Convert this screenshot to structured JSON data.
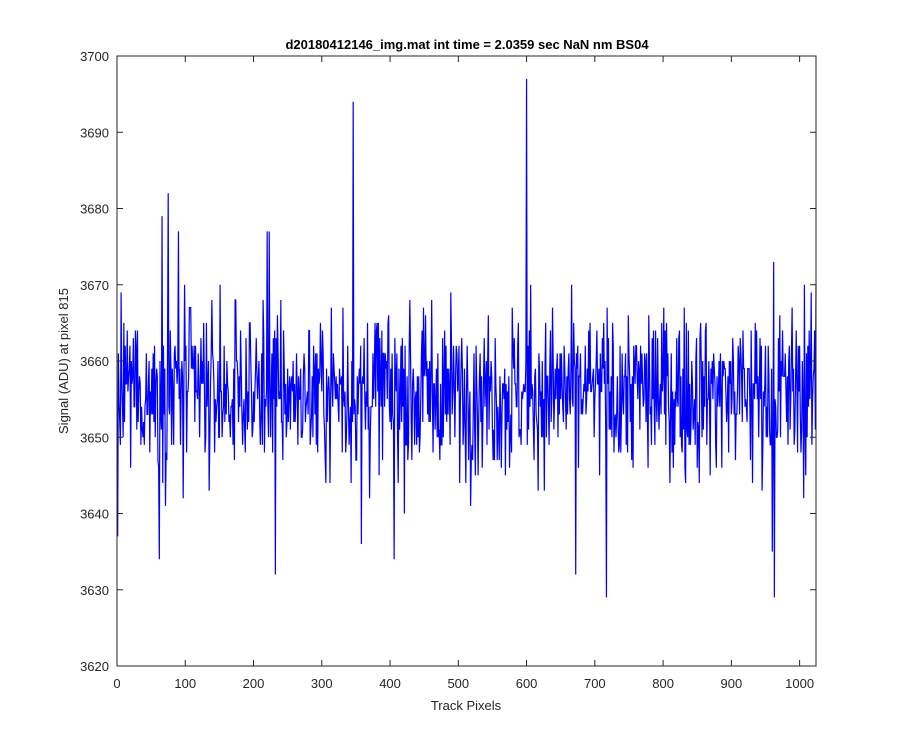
{
  "chart_data": {
    "type": "line",
    "title": "d20180412146_img.mat int time = 2.0359 sec  NaN nm BS04",
    "xlabel": "Track Pixels",
    "ylabel": "Signal (ADU) at pixel 815",
    "xlim": [
      0,
      1024
    ],
    "ylim": [
      3620,
      3700
    ],
    "xticks": [
      0,
      100,
      200,
      300,
      400,
      500,
      600,
      700,
      800,
      900,
      1000
    ],
    "yticks": [
      3620,
      3630,
      3640,
      3650,
      3660,
      3670,
      3680,
      3690,
      3700
    ],
    "grid": false,
    "legend": "none",
    "series": [
      {
        "color": "#0000ff",
        "n_points": 1024,
        "x_start": 1,
        "x_end": 1024,
        "baseline": 3656,
        "typical_range": [
          3640,
          3670
        ],
        "notable_points": [
          {
            "x": 1,
            "y": 3637
          },
          {
            "x": 62,
            "y": 3634
          },
          {
            "x": 66,
            "y": 3679
          },
          {
            "x": 75,
            "y": 3682
          },
          {
            "x": 90,
            "y": 3677
          },
          {
            "x": 220,
            "y": 3677
          },
          {
            "x": 223,
            "y": 3677
          },
          {
            "x": 232,
            "y": 3632
          },
          {
            "x": 346,
            "y": 3694
          },
          {
            "x": 358,
            "y": 3636
          },
          {
            "x": 406,
            "y": 3634
          },
          {
            "x": 600,
            "y": 3697
          },
          {
            "x": 672,
            "y": 3632
          },
          {
            "x": 717,
            "y": 3629
          },
          {
            "x": 960,
            "y": 3635
          },
          {
            "x": 962,
            "y": 3673
          },
          {
            "x": 963,
            "y": 3629
          },
          {
            "x": 1024,
            "y": 3670
          }
        ]
      }
    ]
  }
}
